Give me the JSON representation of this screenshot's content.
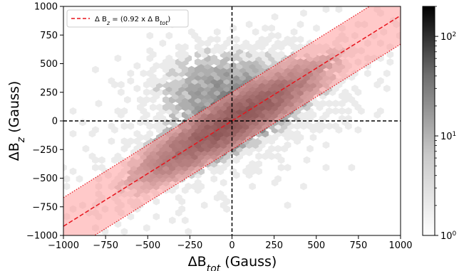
{
  "chart_data": {
    "type": "heatmap",
    "subtype": "hexbin",
    "xlabel_main": "ΔB",
    "xlabel_sub": "tot",
    "xlabel_unit": " (Gauss)",
    "ylabel_main": "ΔB",
    "ylabel_sub": "z",
    "ylabel_unit": " (Gauss)",
    "xlim": [
      -1000,
      1000
    ],
    "ylim": [
      -1000,
      1000
    ],
    "xticks": [
      -1000,
      -750,
      -500,
      -250,
      0,
      250,
      500,
      750,
      1000
    ],
    "yticks": [
      -1000,
      -750,
      -500,
      -250,
      0,
      250,
      500,
      750,
      1000
    ],
    "xtick_labels": [
      "−1000",
      "−750",
      "−500",
      "−250",
      "0",
      "250",
      "500",
      "750",
      "1000"
    ],
    "ytick_labels": [
      "−1000",
      "−750",
      "−500",
      "−250",
      "0",
      "250",
      "500",
      "750",
      "1000"
    ],
    "fit_line": {
      "slope": 0.92,
      "intercept": 0,
      "style": "dashed",
      "color": "#e8141c"
    },
    "band": {
      "half_width": 250,
      "color": "#ff9c9c",
      "edge_style": "dotted"
    },
    "zero_lines": {
      "x": 0,
      "y": 0,
      "style": "dashed",
      "color": "#000000"
    },
    "legend": {
      "placement": "top-left",
      "label_prefix": "Δ B",
      "label_sub1": "z",
      "label_mid": " = (0.92 x Δ B",
      "label_sub2": "tot",
      "label_suffix": ")"
    },
    "colorbar": {
      "scale": "log",
      "range": [
        1,
        200
      ],
      "ticks": [
        1,
        10,
        100
      ],
      "tick_base": "10",
      "tick_exponents": [
        "0",
        "1",
        "2"
      ],
      "colormap": "greys"
    },
    "density_model": {
      "core": {
        "center": [
          0,
          0
        ],
        "axis_slope": 0.92,
        "sigma_along": 280,
        "sigma_across": 70,
        "peak_count": 160
      },
      "halo": {
        "center": [
          -30,
          250
        ],
        "sigma_x": 220,
        "sigma_y": 200,
        "peak_count": 6
      },
      "hex_size_data": 38
    }
  }
}
